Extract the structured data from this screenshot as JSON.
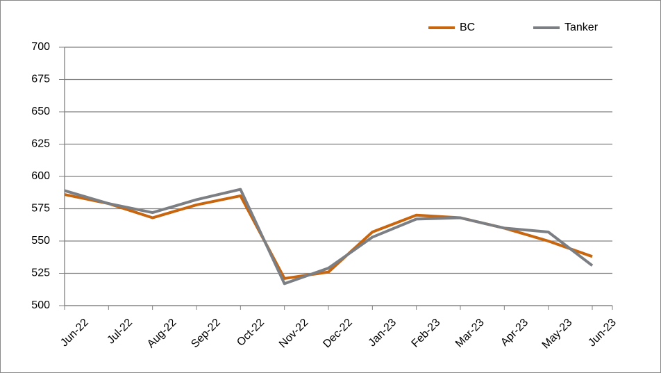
{
  "chart_data": {
    "type": "line",
    "categories": [
      "Jun-22",
      "Jul-22",
      "Aug-22",
      "Sep-22",
      "Oct-22",
      "Nov-22",
      "Dec-22",
      "Jan-23",
      "Feb-23",
      "Mar-23",
      "Apr-23",
      "May-23",
      "Jun-23"
    ],
    "series": [
      {
        "name": "BC",
        "color": "#c8650f",
        "values": [
          586,
          579,
          568,
          578,
          585,
          521,
          526,
          557,
          570,
          568,
          560,
          550,
          538
        ]
      },
      {
        "name": "Tanker",
        "color": "#7b7f84",
        "values": [
          589,
          579,
          572,
          582,
          590,
          517,
          529,
          553,
          567,
          568,
          560,
          557,
          531
        ]
      }
    ],
    "ylim": [
      500,
      700
    ],
    "yticks": [
      500,
      525,
      550,
      575,
      600,
      625,
      650,
      675,
      700
    ],
    "grid": true,
    "legend": "top-right"
  }
}
